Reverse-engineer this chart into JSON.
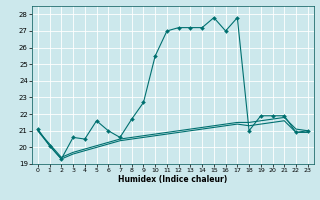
{
  "title": "",
  "xlabel": "Humidex (Indice chaleur)",
  "ylabel": "",
  "xlim": [
    -0.5,
    23.5
  ],
  "ylim": [
    19,
    28.5
  ],
  "yticks": [
    19,
    20,
    21,
    22,
    23,
    24,
    25,
    26,
    27,
    28
  ],
  "xticks": [
    0,
    1,
    2,
    3,
    4,
    5,
    6,
    7,
    8,
    9,
    10,
    11,
    12,
    13,
    14,
    15,
    16,
    17,
    18,
    19,
    20,
    21,
    22,
    23
  ],
  "bg_color": "#cce8ec",
  "grid_color": "#b0d8dc",
  "line_color": "#007070",
  "lines": [
    {
      "x": [
        0,
        1,
        2,
        3,
        4,
        5,
        6,
        7,
        8,
        9,
        10,
        11,
        12,
        13,
        14,
        15,
        16,
        17,
        18,
        19,
        20,
        21,
        22,
        23
      ],
      "y": [
        21.1,
        20.1,
        19.3,
        20.6,
        20.5,
        21.6,
        21.0,
        20.6,
        21.7,
        22.7,
        25.5,
        27.0,
        27.2,
        27.2,
        27.2,
        27.8,
        27.0,
        27.8,
        21.0,
        21.9,
        21.9,
        21.9,
        20.9,
        21.0
      ],
      "marker": "D",
      "markersize": 2.0,
      "linewidth": 0.8
    },
    {
      "x": [
        0,
        1,
        2,
        3,
        4,
        5,
        6,
        7,
        8,
        9,
        10,
        11,
        12,
        13,
        14,
        15,
        16,
        17,
        18,
        19,
        20,
        21,
        22,
        23
      ],
      "y": [
        21.0,
        20.2,
        19.4,
        19.7,
        19.9,
        20.1,
        20.3,
        20.5,
        20.6,
        20.7,
        20.8,
        20.9,
        21.0,
        21.1,
        21.2,
        21.3,
        21.4,
        21.5,
        21.5,
        21.6,
        21.7,
        21.8,
        21.1,
        21.0
      ],
      "marker": null,
      "markersize": 0,
      "linewidth": 0.8
    },
    {
      "x": [
        0,
        1,
        2,
        3,
        4,
        5,
        6,
        7,
        8,
        9,
        10,
        11,
        12,
        13,
        14,
        15,
        16,
        17,
        18,
        19,
        20,
        21,
        22,
        23
      ],
      "y": [
        21.0,
        20.1,
        19.3,
        19.6,
        19.8,
        20.0,
        20.2,
        20.4,
        20.5,
        20.6,
        20.7,
        20.8,
        20.9,
        21.0,
        21.1,
        21.2,
        21.3,
        21.4,
        21.3,
        21.4,
        21.5,
        21.6,
        20.9,
        20.9
      ],
      "marker": null,
      "markersize": 0,
      "linewidth": 0.8
    }
  ]
}
